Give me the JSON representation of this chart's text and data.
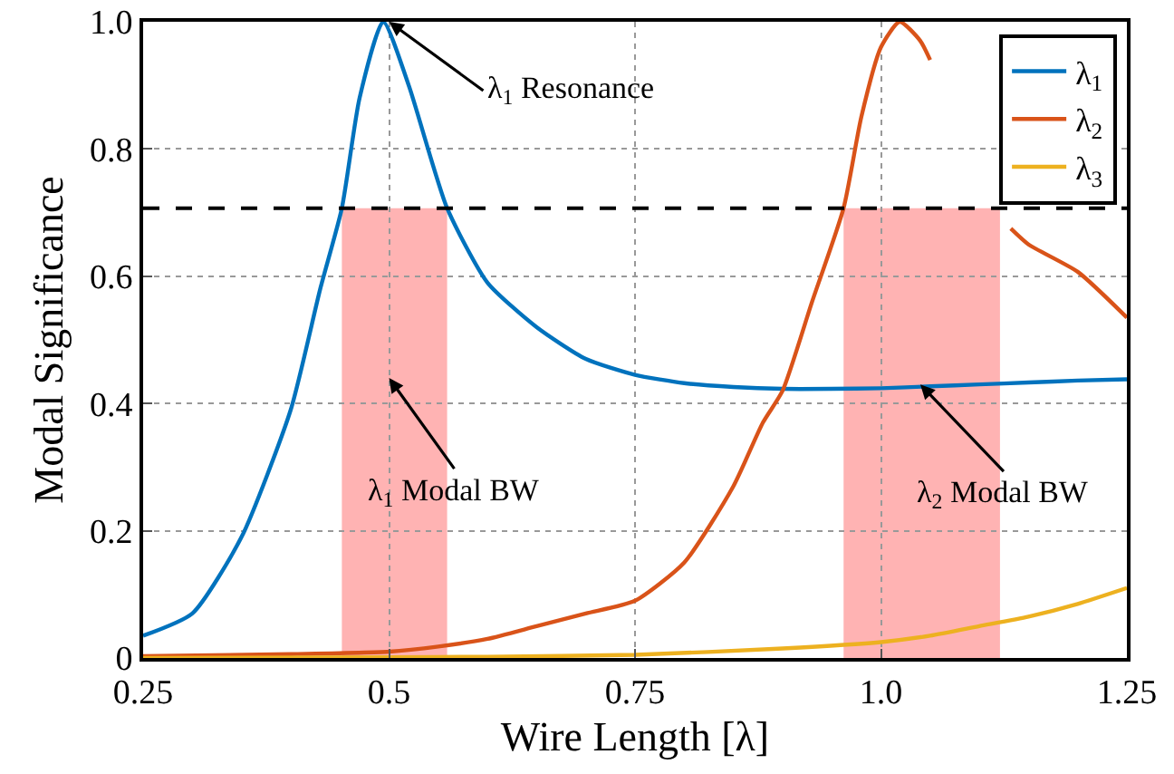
{
  "chart_data": {
    "type": "line",
    "xlabel": "Wire Length [λ]",
    "ylabel": "Modal Significance",
    "xlim": [
      0.25,
      1.25
    ],
    "ylim": [
      0,
      1
    ],
    "xticks": [
      0.25,
      0.5,
      0.75,
      {
        "value": 1,
        "label": "1.0"
      },
      1.25
    ],
    "yticks": [
      0,
      0.2,
      0.4,
      0.6,
      0.8,
      {
        "value": 1,
        "label": "1.0"
      }
    ],
    "grid": true,
    "legend": "top right",
    "line_style": "solid",
    "marker": "none",
    "series": [
      {
        "name": "λ$_{1}$",
        "color": "#0072bd",
        "x": [
          0.25,
          0.3,
          0.35,
          0.4,
          0.43,
          0.452,
          0.47,
          0.494,
          0.52,
          0.559,
          0.6,
          0.65,
          0.7,
          0.75,
          0.8,
          0.85,
          0.9,
          0.95,
          1.0,
          1.05,
          1.1,
          1.15,
          1.2,
          1.25
        ],
        "values": [
          0.035,
          0.07,
          0.19,
          0.39,
          0.58,
          0.707,
          0.88,
          1.0,
          0.9,
          0.707,
          0.59,
          0.52,
          0.47,
          0.445,
          0.432,
          0.426,
          0.423,
          0.423,
          0.424,
          0.427,
          0.43,
          0.433,
          0.436,
          0.438
        ]
      },
      {
        "name": "λ$_{2}$",
        "color": "#d95319",
        "x": [
          0.25,
          0.4,
          0.5,
          0.55,
          0.6,
          0.65,
          0.7,
          0.75,
          0.8,
          0.85,
          0.88,
          0.9,
          0.93,
          0.962,
          0.98,
          1.0,
          1.019,
          1.04,
          1.05,
          1.07,
          1.09,
          1.11,
          1.132,
          1.15,
          1.2,
          1.25
        ],
        "values": [
          0.003,
          0.006,
          0.01,
          0.018,
          0.03,
          0.05,
          0.07,
          0.09,
          0.15,
          0.27,
          0.37,
          0.42,
          0.56,
          0.707,
          0.85,
          0.96,
          1.0,
          0.97,
          0.94,
          null,
          null,
          null,
          0.675,
          0.65,
          0.607,
          0.535
        ]
      },
      {
        "name": "λ$_{3}$",
        "color": "#edb120",
        "x": [
          0.25,
          0.5,
          0.6,
          0.75,
          0.9,
          1.0,
          1.05,
          1.1,
          1.15,
          1.2,
          1.25
        ],
        "values": [
          0,
          0.001,
          0.002,
          0.005,
          0.015,
          0.025,
          0.035,
          0.05,
          0.065,
          0.085,
          0.11
        ]
      }
    ],
    "ref_lines": [
      {
        "axis": "y",
        "value": 0.707,
        "color": "#000000",
        "line_style": "dashed"
      }
    ],
    "bands": [
      {
        "axis": "x",
        "from": 0.452,
        "to": 0.559,
        "color": "#ffb3b3"
      },
      {
        "axis": "x",
        "from": 0.962,
        "to": 1.121,
        "color": "#ffb3b3"
      }
    ],
    "annotations": [
      {
        "text": "λ$_{1}$ Resonance",
        "x": 0.5,
        "y": 1.0
      },
      "λ$_{1}$ Modal BW",
      {
        "text": "λ$_{2}$ Modal BW",
        "x": 1.04,
        "y": 0.43
      }
    ]
  }
}
